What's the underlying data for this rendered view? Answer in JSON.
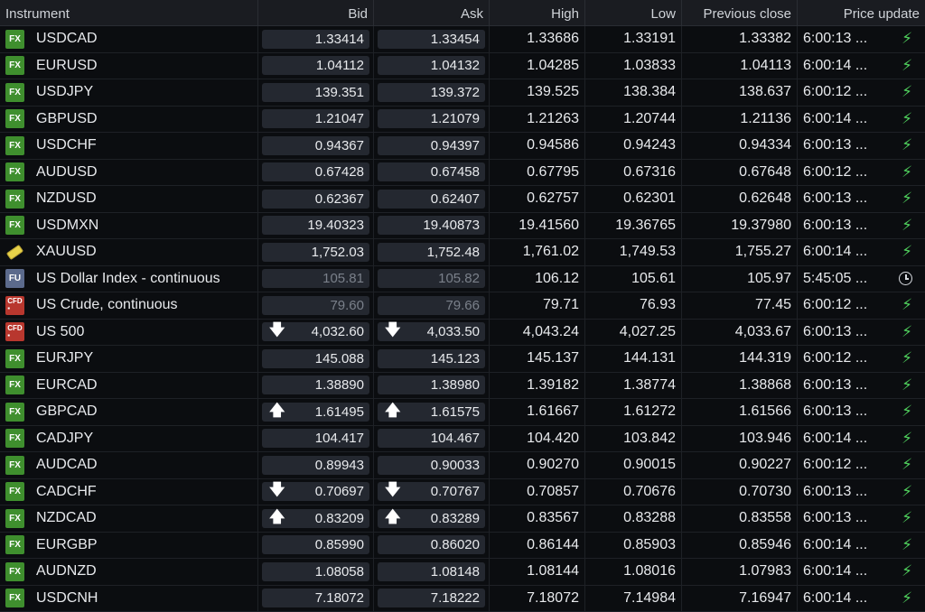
{
  "columns": [
    "Instrument",
    "Bid",
    "Ask",
    "High",
    "Low",
    "Previous close",
    "Price update"
  ],
  "rows": [
    {
      "type": "FX",
      "name": "USDCAD",
      "bid": "1.33414",
      "ask": "1.33454",
      "high": "1.33686",
      "low": "1.33191",
      "prev": "1.33382",
      "time": "6:00:13 ...",
      "status": "bolt"
    },
    {
      "type": "FX",
      "name": "EURUSD",
      "bid": "1.04112",
      "ask": "1.04132",
      "high": "1.04285",
      "low": "1.03833",
      "prev": "1.04113",
      "time": "6:00:14 ...",
      "status": "bolt"
    },
    {
      "type": "FX",
      "name": "USDJPY",
      "bid": "139.351",
      "ask": "139.372",
      "high": "139.525",
      "low": "138.384",
      "prev": "138.637",
      "time": "6:00:12 ...",
      "status": "bolt"
    },
    {
      "type": "FX",
      "name": "GBPUSD",
      "bid": "1.21047",
      "ask": "1.21079",
      "high": "1.21263",
      "low": "1.20744",
      "prev": "1.21136",
      "time": "6:00:14 ...",
      "status": "bolt"
    },
    {
      "type": "FX",
      "name": "USDCHF",
      "bid": "0.94367",
      "ask": "0.94397",
      "high": "0.94586",
      "low": "0.94243",
      "prev": "0.94334",
      "time": "6:00:13 ...",
      "status": "bolt"
    },
    {
      "type": "FX",
      "name": "AUDUSD",
      "bid": "0.67428",
      "ask": "0.67458",
      "high": "0.67795",
      "low": "0.67316",
      "prev": "0.67648",
      "time": "6:00:12 ...",
      "status": "bolt"
    },
    {
      "type": "FX",
      "name": "NZDUSD",
      "bid": "0.62367",
      "ask": "0.62407",
      "high": "0.62757",
      "low": "0.62301",
      "prev": "0.62648",
      "time": "6:00:13 ...",
      "status": "bolt"
    },
    {
      "type": "FX",
      "name": "USDMXN",
      "bid": "19.40323",
      "ask": "19.40873",
      "high": "19.41560",
      "low": "19.36765",
      "prev": "19.37980",
      "time": "6:00:13 ...",
      "status": "bolt"
    },
    {
      "type": "GOLD",
      "name": "XAUUSD",
      "bid": "1,752.03",
      "ask": "1,752.48",
      "high": "1,761.02",
      "low": "1,749.53",
      "prev": "1,755.27",
      "time": "6:00:14 ...",
      "status": "bolt"
    },
    {
      "type": "FU",
      "name": "US Dollar Index - continuous",
      "bid": "105.81",
      "ask": "105.82",
      "high": "106.12",
      "low": "105.61",
      "prev": "105.97",
      "time": "5:45:05 ...",
      "status": "clock",
      "dim": true
    },
    {
      "type": "CFD",
      "name": "US Crude, continuous",
      "bid": "79.60",
      "ask": "79.66",
      "high": "79.71",
      "low": "76.93",
      "prev": "77.45",
      "time": "6:00:12 ...",
      "status": "bolt",
      "dim": true
    },
    {
      "type": "CFD",
      "name": "US 500",
      "bid": "4,032.60",
      "ask": "4,033.50",
      "high": "4,043.24",
      "low": "4,027.25",
      "prev": "4,033.67",
      "time": "6:00:13 ...",
      "status": "bolt",
      "arrow": "down"
    },
    {
      "type": "FX",
      "name": "EURJPY",
      "bid": "145.088",
      "ask": "145.123",
      "high": "145.137",
      "low": "144.131",
      "prev": "144.319",
      "time": "6:00:12 ...",
      "status": "bolt"
    },
    {
      "type": "FX",
      "name": "EURCAD",
      "bid": "1.38890",
      "ask": "1.38980",
      "high": "1.39182",
      "low": "1.38774",
      "prev": "1.38868",
      "time": "6:00:13 ...",
      "status": "bolt"
    },
    {
      "type": "FX",
      "name": "GBPCAD",
      "bid": "1.61495",
      "ask": "1.61575",
      "high": "1.61667",
      "low": "1.61272",
      "prev": "1.61566",
      "time": "6:00:13 ...",
      "status": "bolt",
      "arrow": "up"
    },
    {
      "type": "FX",
      "name": "CADJPY",
      "bid": "104.417",
      "ask": "104.467",
      "high": "104.420",
      "low": "103.842",
      "prev": "103.946",
      "time": "6:00:14 ...",
      "status": "bolt"
    },
    {
      "type": "FX",
      "name": "AUDCAD",
      "bid": "0.89943",
      "ask": "0.90033",
      "high": "0.90270",
      "low": "0.90015",
      "prev": "0.90227",
      "time": "6:00:12 ...",
      "status": "bolt"
    },
    {
      "type": "FX",
      "name": "CADCHF",
      "bid": "0.70697",
      "ask": "0.70767",
      "high": "0.70857",
      "low": "0.70676",
      "prev": "0.70730",
      "time": "6:00:13 ...",
      "status": "bolt",
      "arrow": "down"
    },
    {
      "type": "FX",
      "name": "NZDCAD",
      "bid": "0.83209",
      "ask": "0.83289",
      "high": "0.83567",
      "low": "0.83288",
      "prev": "0.83558",
      "time": "6:00:13 ...",
      "status": "bolt",
      "arrow": "up"
    },
    {
      "type": "FX",
      "name": "EURGBP",
      "bid": "0.85990",
      "ask": "0.86020",
      "high": "0.86144",
      "low": "0.85903",
      "prev": "0.85946",
      "time": "6:00:14 ...",
      "status": "bolt"
    },
    {
      "type": "FX",
      "name": "AUDNZD",
      "bid": "1.08058",
      "ask": "1.08148",
      "high": "1.08144",
      "low": "1.08016",
      "prev": "1.07983",
      "time": "6:00:14 ...",
      "status": "bolt"
    },
    {
      "type": "FX",
      "name": "USDCNH",
      "bid": "7.18072",
      "ask": "7.18222",
      "high": "7.18072",
      "low": "7.14984",
      "prev": "7.16947",
      "time": "6:00:14 ...",
      "status": "bolt"
    }
  ]
}
